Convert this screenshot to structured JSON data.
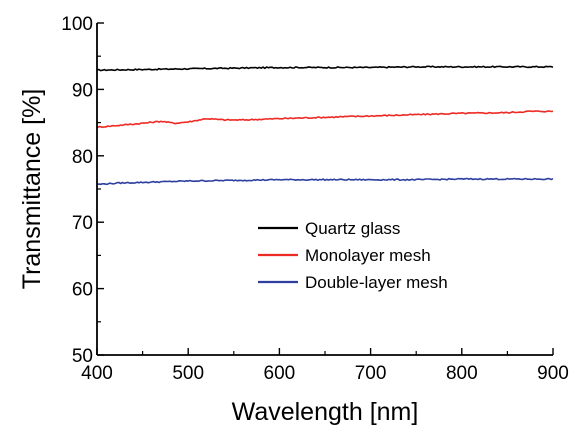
{
  "chart_data": {
    "type": "line",
    "title": "",
    "xlabel": "Wavelength [nm]",
    "ylabel": "Transmittance [%]",
    "xlim": [
      400,
      900
    ],
    "ylim": [
      50,
      100
    ],
    "x_ticks": [
      "400",
      "500",
      "600",
      "700",
      "800",
      "900"
    ],
    "y_ticks": [
      "50",
      "60",
      "70",
      "80",
      "90",
      "100"
    ],
    "grid": false,
    "legend_position": "lower-right",
    "series": [
      {
        "name": "Quartz glass",
        "color": "#000000",
        "x": [
          400,
          450,
          500,
          550,
          600,
          650,
          700,
          750,
          800,
          850,
          900
        ],
        "y": [
          92.9,
          93.0,
          93.1,
          93.2,
          93.3,
          93.3,
          93.3,
          93.4,
          93.4,
          93.4,
          93.4
        ]
      },
      {
        "name": "Monolayer mesh",
        "color": "#ee2a24",
        "x": [
          400,
          425,
          450,
          470,
          485,
          500,
          520,
          540,
          560,
          600,
          650,
          700,
          750,
          800,
          850,
          875,
          900
        ],
        "y": [
          84.3,
          84.6,
          84.9,
          85.2,
          84.9,
          85.1,
          85.6,
          85.4,
          85.4,
          85.6,
          85.8,
          86.0,
          86.2,
          86.4,
          86.5,
          86.7,
          86.7
        ]
      },
      {
        "name": "Double-layer mesh",
        "color": "#2e3fa0",
        "x": [
          400,
          425,
          450,
          500,
          550,
          600,
          650,
          700,
          750,
          800,
          850,
          900
        ],
        "y": [
          75.7,
          75.9,
          76.0,
          76.2,
          76.3,
          76.4,
          76.4,
          76.4,
          76.4,
          76.5,
          76.5,
          76.5
        ]
      }
    ]
  }
}
